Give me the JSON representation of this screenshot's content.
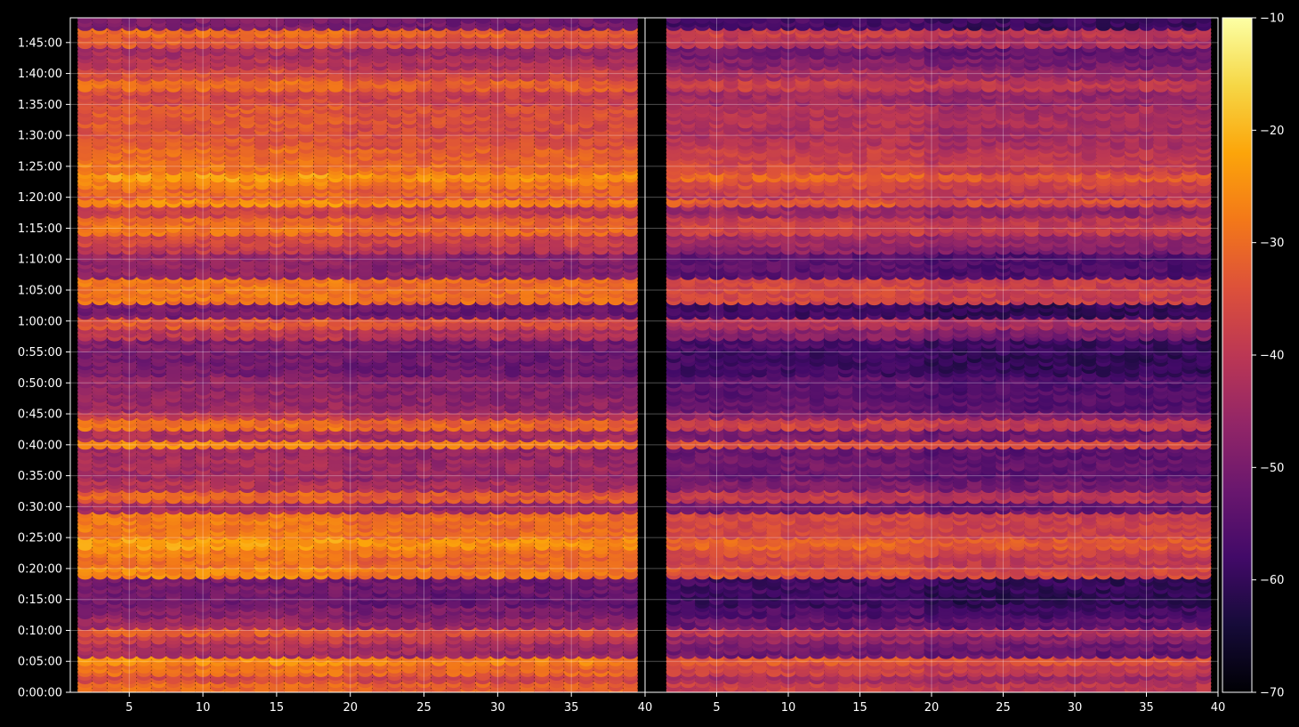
{
  "chart_data": {
    "type": "heatmap",
    "title": "",
    "xlabel": "",
    "ylabel": "",
    "panels": [
      {
        "name": "",
        "xlim": [
          1,
          40
        ],
        "xticks": [
          5,
          10,
          15,
          20,
          25,
          30,
          35
        ],
        "xtick_labels": [
          "5",
          "10",
          "15",
          "20",
          "25",
          "30",
          "35"
        ],
        "level_offset": 0
      },
      {
        "name": "",
        "xlim": [
          0,
          40
        ],
        "xticks": [
          5,
          10,
          15,
          20,
          25,
          30,
          35,
          40
        ],
        "xtick_labels": [
          "5",
          "10",
          "15",
          "20",
          "25",
          "30",
          "35",
          "40"
        ],
        "level_offset": -8
      }
    ],
    "shared_left_edge_label": "40",
    "y_range_seconds": [
      0,
      6540
    ],
    "yticks_seconds": [
      0,
      300,
      600,
      900,
      1200,
      1500,
      1800,
      2100,
      2400,
      2700,
      3000,
      3300,
      3600,
      3900,
      4200,
      4500,
      4800,
      5100,
      5400,
      5700,
      6000,
      6300
    ],
    "ytick_labels": [
      "0:00:00",
      "0:05:00",
      "0:10:00",
      "0:15:00",
      "0:20:00",
      "0:25:00",
      "0:30:00",
      "0:35:00",
      "0:40:00",
      "0:45:00",
      "0:50:00",
      "0:55:00",
      "1:00:00",
      "1:05:00",
      "1:10:00",
      "1:15:00",
      "1:20:00",
      "1:25:00",
      "1:30:00",
      "1:35:00",
      "1:40:00",
      "1:45:00"
    ],
    "grid": true,
    "colormap": "inferno",
    "colorbar": {
      "range": [
        -70,
        -10
      ],
      "ticks": [
        -70,
        -60,
        -50,
        -40,
        -30,
        -20,
        -10
      ],
      "tick_labels": [
        "−70",
        "−60",
        "−50",
        "−40",
        "−30",
        "−20",
        "−10"
      ]
    },
    "row_levels_dB": [
      {
        "t": 60,
        "v": -32
      },
      {
        "t": 150,
        "v": -37
      },
      {
        "t": 230,
        "v": -31
      },
      {
        "t": 320,
        "v": -27
      },
      {
        "t": 390,
        "v": -45
      },
      {
        "t": 470,
        "v": -44
      },
      {
        "t": 545,
        "v": -40
      },
      {
        "t": 600,
        "v": -34
      },
      {
        "t": 680,
        "v": -46
      },
      {
        "t": 760,
        "v": -50
      },
      {
        "t": 950,
        "v": -53
      },
      {
        "t": 1030,
        "v": -52
      },
      {
        "t": 1180,
        "v": -28
      },
      {
        "t": 1280,
        "v": -31
      },
      {
        "t": 1360,
        "v": -29
      },
      {
        "t": 1450,
        "v": -25
      },
      {
        "t": 1530,
        "v": -30
      },
      {
        "t": 1600,
        "v": -30
      },
      {
        "t": 1700,
        "v": -30
      },
      {
        "t": 1800,
        "v": -45
      },
      {
        "t": 1920,
        "v": -33
      },
      {
        "t": 2010,
        "v": -43
      },
      {
        "t": 2100,
        "v": -46
      },
      {
        "t": 2230,
        "v": -45
      },
      {
        "t": 2320,
        "v": -46
      },
      {
        "t": 2410,
        "v": -28
      },
      {
        "t": 2500,
        "v": -44
      },
      {
        "t": 2630,
        "v": -31
      },
      {
        "t": 2700,
        "v": -41
      },
      {
        "t": 2790,
        "v": -47
      },
      {
        "t": 2930,
        "v": -48
      },
      {
        "t": 3230,
        "v": -52
      },
      {
        "t": 3290,
        "v": -52
      },
      {
        "t": 3380,
        "v": -51
      },
      {
        "t": 3510,
        "v": -42
      },
      {
        "t": 3560,
        "v": -35
      },
      {
        "t": 3710,
        "v": -52
      },
      {
        "t": 3840,
        "v": -30
      },
      {
        "t": 4210,
        "v": -48
      },
      {
        "t": 4300,
        "v": -41
      },
      {
        "t": 4400,
        "v": -38
      },
      {
        "t": 4500,
        "v": -31
      },
      {
        "t": 4580,
        "v": -32
      },
      {
        "t": 4680,
        "v": -39
      },
      {
        "t": 4740,
        "v": -27
      },
      {
        "t": 4820,
        "v": -34
      },
      {
        "t": 4870,
        "v": -32
      },
      {
        "t": 4950,
        "v": -29
      },
      {
        "t": 5000,
        "v": -25
      },
      {
        "t": 5090,
        "v": -30
      },
      {
        "t": 5210,
        "v": -32
      },
      {
        "t": 5340,
        "v": -35
      },
      {
        "t": 5420,
        "v": -36
      },
      {
        "t": 5600,
        "v": -35
      },
      {
        "t": 5790,
        "v": -38
      },
      {
        "t": 5900,
        "v": -32
      },
      {
        "t": 6020,
        "v": -37
      },
      {
        "t": 6110,
        "v": -42
      },
      {
        "t": 6240,
        "v": -45
      },
      {
        "t": 6320,
        "v": -35
      },
      {
        "t": 6410,
        "v": -32
      },
      {
        "t": 6480,
        "v": -51
      }
    ]
  }
}
